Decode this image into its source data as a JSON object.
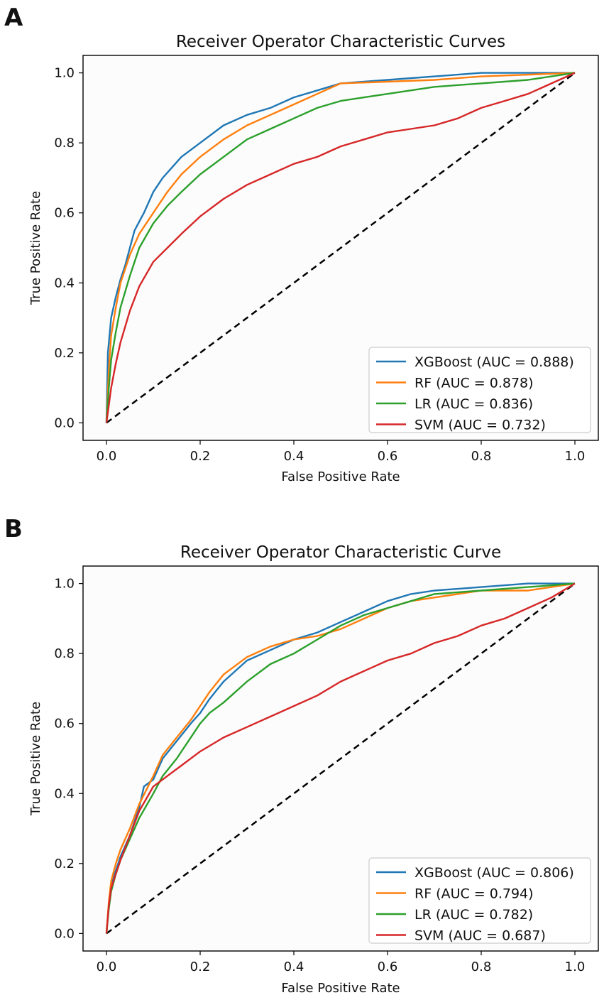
{
  "panels": [
    {
      "letter": "A",
      "chart_data": {
        "type": "line",
        "title": "Receiver Operator Characteristic Curves",
        "xlabel": "False Positive Rate",
        "ylabel": "True Positive Rate",
        "xlim": [
          -0.05,
          1.05
        ],
        "ylim": [
          -0.05,
          1.05
        ],
        "xticks": [
          "0.0",
          "0.2",
          "0.4",
          "0.6",
          "0.8",
          "1.0"
        ],
        "yticks": [
          "0.0",
          "0.2",
          "0.4",
          "0.6",
          "0.8",
          "1.0"
        ],
        "legend_position": "lower-right",
        "diagonal": [
          [
            0,
            0
          ],
          [
            1,
            1
          ]
        ],
        "series": [
          {
            "name": "XGBoost (AUC = 0.888)",
            "color": "#1f77b4",
            "points": [
              [
                0,
                0
              ],
              [
                0.003,
                0.2
              ],
              [
                0.01,
                0.3
              ],
              [
                0.02,
                0.36
              ],
              [
                0.03,
                0.41
              ],
              [
                0.04,
                0.45
              ],
              [
                0.05,
                0.5
              ],
              [
                0.06,
                0.55
              ],
              [
                0.08,
                0.6
              ],
              [
                0.1,
                0.66
              ],
              [
                0.12,
                0.7
              ],
              [
                0.14,
                0.73
              ],
              [
                0.16,
                0.76
              ],
              [
                0.2,
                0.8
              ],
              [
                0.25,
                0.85
              ],
              [
                0.3,
                0.88
              ],
              [
                0.35,
                0.9
              ],
              [
                0.4,
                0.93
              ],
              [
                0.45,
                0.95
              ],
              [
                0.5,
                0.97
              ],
              [
                0.6,
                0.98
              ],
              [
                0.7,
                0.99
              ],
              [
                0.8,
                1.0
              ],
              [
                1.0,
                1.0
              ]
            ]
          },
          {
            "name": "RF (AUC = 0.878)",
            "color": "#ff7f0e",
            "points": [
              [
                0,
                0
              ],
              [
                0.005,
                0.15
              ],
              [
                0.01,
                0.25
              ],
              [
                0.02,
                0.33
              ],
              [
                0.03,
                0.4
              ],
              [
                0.05,
                0.48
              ],
              [
                0.07,
                0.54
              ],
              [
                0.1,
                0.6
              ],
              [
                0.13,
                0.66
              ],
              [
                0.16,
                0.71
              ],
              [
                0.2,
                0.76
              ],
              [
                0.25,
                0.81
              ],
              [
                0.3,
                0.85
              ],
              [
                0.35,
                0.88
              ],
              [
                0.4,
                0.91
              ],
              [
                0.45,
                0.94
              ],
              [
                0.5,
                0.97
              ],
              [
                0.6,
                0.975
              ],
              [
                0.7,
                0.98
              ],
              [
                0.8,
                0.99
              ],
              [
                1.0,
                1.0
              ]
            ]
          },
          {
            "name": "LR (AUC = 0.836)",
            "color": "#2ca02c",
            "points": [
              [
                0,
                0
              ],
              [
                0.005,
                0.1
              ],
              [
                0.01,
                0.18
              ],
              [
                0.02,
                0.26
              ],
              [
                0.03,
                0.33
              ],
              [
                0.05,
                0.42
              ],
              [
                0.07,
                0.5
              ],
              [
                0.1,
                0.57
              ],
              [
                0.13,
                0.62
              ],
              [
                0.16,
                0.66
              ],
              [
                0.2,
                0.71
              ],
              [
                0.25,
                0.76
              ],
              [
                0.3,
                0.81
              ],
              [
                0.35,
                0.84
              ],
              [
                0.4,
                0.87
              ],
              [
                0.45,
                0.9
              ],
              [
                0.5,
                0.92
              ],
              [
                0.55,
                0.93
              ],
              [
                0.6,
                0.94
              ],
              [
                0.7,
                0.96
              ],
              [
                0.8,
                0.97
              ],
              [
                0.9,
                0.98
              ],
              [
                1.0,
                1.0
              ]
            ]
          },
          {
            "name": "SVM (AUC = 0.732)",
            "color": "#d62728",
            "points": [
              [
                0,
                0
              ],
              [
                0.01,
                0.1
              ],
              [
                0.02,
                0.17
              ],
              [
                0.03,
                0.23
              ],
              [
                0.05,
                0.32
              ],
              [
                0.07,
                0.39
              ],
              [
                0.1,
                0.46
              ],
              [
                0.13,
                0.5
              ],
              [
                0.16,
                0.54
              ],
              [
                0.2,
                0.59
              ],
              [
                0.25,
                0.64
              ],
              [
                0.3,
                0.68
              ],
              [
                0.35,
                0.71
              ],
              [
                0.4,
                0.74
              ],
              [
                0.45,
                0.76
              ],
              [
                0.5,
                0.79
              ],
              [
                0.55,
                0.81
              ],
              [
                0.6,
                0.83
              ],
              [
                0.65,
                0.84
              ],
              [
                0.7,
                0.85
              ],
              [
                0.75,
                0.87
              ],
              [
                0.8,
                0.9
              ],
              [
                0.85,
                0.92
              ],
              [
                0.9,
                0.94
              ],
              [
                0.95,
                0.97
              ],
              [
                1.0,
                1.0
              ]
            ]
          }
        ]
      }
    },
    {
      "letter": "B",
      "chart_data": {
        "type": "line",
        "title": "Receiver Operator Characteristic Curve",
        "xlabel": "False Positive Rate",
        "ylabel": "True Positive Rate",
        "xlim": [
          -0.05,
          1.05
        ],
        "ylim": [
          -0.05,
          1.05
        ],
        "xticks": [
          "0.0",
          "0.2",
          "0.4",
          "0.6",
          "0.8",
          "1.0"
        ],
        "yticks": [
          "0.0",
          "0.2",
          "0.4",
          "0.6",
          "0.8",
          "1.0"
        ],
        "legend_position": "lower-right",
        "diagonal": [
          [
            0,
            0
          ],
          [
            1,
            1
          ]
        ],
        "series": [
          {
            "name": "XGBoost (AUC = 0.806)",
            "color": "#1f77b4",
            "points": [
              [
                0,
                0
              ],
              [
                0.005,
                0.08
              ],
              [
                0.01,
                0.14
              ],
              [
                0.02,
                0.18
              ],
              [
                0.03,
                0.22
              ],
              [
                0.05,
                0.28
              ],
              [
                0.07,
                0.36
              ],
              [
                0.08,
                0.42
              ],
              [
                0.1,
                0.44
              ],
              [
                0.12,
                0.5
              ],
              [
                0.15,
                0.55
              ],
              [
                0.18,
                0.6
              ],
              [
                0.2,
                0.63
              ],
              [
                0.22,
                0.67
              ],
              [
                0.25,
                0.72
              ],
              [
                0.3,
                0.78
              ],
              [
                0.35,
                0.81
              ],
              [
                0.4,
                0.84
              ],
              [
                0.45,
                0.86
              ],
              [
                0.5,
                0.89
              ],
              [
                0.55,
                0.92
              ],
              [
                0.6,
                0.95
              ],
              [
                0.65,
                0.97
              ],
              [
                0.7,
                0.98
              ],
              [
                0.8,
                0.99
              ],
              [
                0.9,
                1.0
              ],
              [
                1.0,
                1.0
              ]
            ]
          },
          {
            "name": "RF (AUC = 0.794)",
            "color": "#ff7f0e",
            "points": [
              [
                0,
                0
              ],
              [
                0.005,
                0.09
              ],
              [
                0.01,
                0.15
              ],
              [
                0.02,
                0.2
              ],
              [
                0.03,
                0.24
              ],
              [
                0.05,
                0.3
              ],
              [
                0.07,
                0.37
              ],
              [
                0.1,
                0.45
              ],
              [
                0.12,
                0.51
              ],
              [
                0.15,
                0.56
              ],
              [
                0.18,
                0.61
              ],
              [
                0.2,
                0.65
              ],
              [
                0.22,
                0.69
              ],
              [
                0.25,
                0.74
              ],
              [
                0.3,
                0.79
              ],
              [
                0.35,
                0.82
              ],
              [
                0.4,
                0.84
              ],
              [
                0.45,
                0.85
              ],
              [
                0.5,
                0.87
              ],
              [
                0.55,
                0.9
              ],
              [
                0.6,
                0.93
              ],
              [
                0.65,
                0.95
              ],
              [
                0.7,
                0.96
              ],
              [
                0.8,
                0.98
              ],
              [
                0.9,
                0.98
              ],
              [
                1.0,
                1.0
              ]
            ]
          },
          {
            "name": "LR (AUC = 0.782)",
            "color": "#2ca02c",
            "points": [
              [
                0,
                0
              ],
              [
                0.005,
                0.07
              ],
              [
                0.01,
                0.12
              ],
              [
                0.02,
                0.17
              ],
              [
                0.03,
                0.21
              ],
              [
                0.05,
                0.27
              ],
              [
                0.07,
                0.33
              ],
              [
                0.1,
                0.4
              ],
              [
                0.12,
                0.45
              ],
              [
                0.15,
                0.5
              ],
              [
                0.18,
                0.56
              ],
              [
                0.2,
                0.6
              ],
              [
                0.22,
                0.63
              ],
              [
                0.25,
                0.66
              ],
              [
                0.3,
                0.72
              ],
              [
                0.35,
                0.77
              ],
              [
                0.4,
                0.8
              ],
              [
                0.45,
                0.84
              ],
              [
                0.5,
                0.88
              ],
              [
                0.55,
                0.91
              ],
              [
                0.6,
                0.93
              ],
              [
                0.65,
                0.95
              ],
              [
                0.7,
                0.97
              ],
              [
                0.8,
                0.98
              ],
              [
                0.9,
                0.99
              ],
              [
                1.0,
                1.0
              ]
            ]
          },
          {
            "name": "SVM (AUC = 0.687)",
            "color": "#d62728",
            "points": [
              [
                0,
                0
              ],
              [
                0.005,
                0.08
              ],
              [
                0.01,
                0.13
              ],
              [
                0.02,
                0.17
              ],
              [
                0.03,
                0.21
              ],
              [
                0.05,
                0.28
              ],
              [
                0.07,
                0.35
              ],
              [
                0.1,
                0.42
              ],
              [
                0.13,
                0.45
              ],
              [
                0.16,
                0.48
              ],
              [
                0.2,
                0.52
              ],
              [
                0.25,
                0.56
              ],
              [
                0.3,
                0.59
              ],
              [
                0.35,
                0.62
              ],
              [
                0.4,
                0.65
              ],
              [
                0.45,
                0.68
              ],
              [
                0.5,
                0.72
              ],
              [
                0.55,
                0.75
              ],
              [
                0.6,
                0.78
              ],
              [
                0.65,
                0.8
              ],
              [
                0.7,
                0.83
              ],
              [
                0.75,
                0.85
              ],
              [
                0.8,
                0.88
              ],
              [
                0.85,
                0.9
              ],
              [
                0.9,
                0.93
              ],
              [
                0.95,
                0.96
              ],
              [
                1.0,
                1.0
              ]
            ]
          }
        ]
      }
    }
  ]
}
